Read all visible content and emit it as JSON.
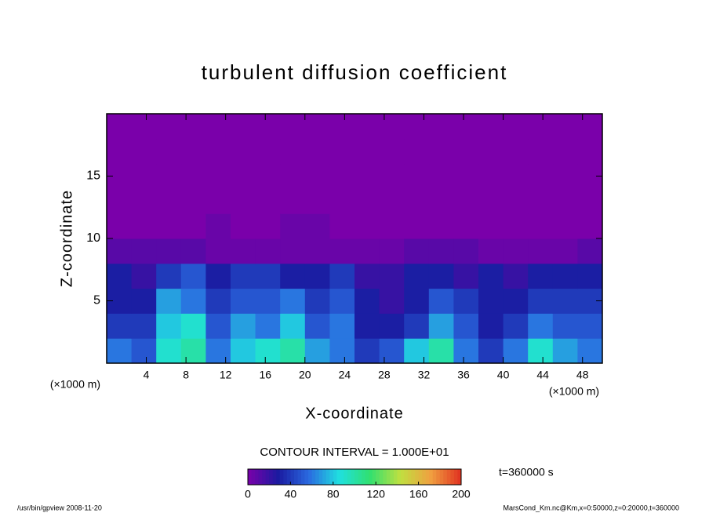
{
  "chart_data": {
    "type": "contour",
    "title": "turbulent diffusion coefficient",
    "xlabel": "X-coordinate",
    "ylabel": "Z-coordinate",
    "x_unit_left": "(×1000 m)",
    "x_unit_right": "(×1000 m)",
    "contour_interval": "CONTOUR INTERVAL = 1.000E+01",
    "time_label": "t=360000 s",
    "footer_left": "/usr/bin/gpview  2008-11-20",
    "footer_right": "MarsCond_Km.nc@Km,x=0:50000,z=0:20000,t=360000",
    "xlim": [
      0,
      50
    ],
    "xticks": [
      4,
      8,
      12,
      16,
      20,
      24,
      28,
      32,
      36,
      40,
      44,
      48
    ],
    "ylim": [
      0,
      20
    ],
    "yticks": [
      5,
      10,
      15
    ],
    "x": [
      1.25,
      3.75,
      6.25,
      8.75,
      11.25,
      13.75,
      16.25,
      18.75,
      21.25,
      23.75,
      26.25,
      28.75,
      31.25,
      33.75,
      36.25,
      38.75,
      41.25,
      43.75,
      46.25,
      48.75
    ],
    "z": [
      1,
      3,
      5,
      7,
      9,
      11,
      13,
      15,
      17,
      19
    ],
    "values": [
      [
        60,
        50,
        90,
        100,
        60,
        80,
        90,
        100,
        70,
        60,
        40,
        50,
        80,
        100,
        60,
        40,
        60,
        90,
        70,
        60
      ],
      [
        40,
        40,
        80,
        90,
        50,
        70,
        60,
        80,
        50,
        60,
        30,
        30,
        40,
        70,
        50,
        30,
        40,
        60,
        50,
        50
      ],
      [
        30,
        30,
        70,
        60,
        40,
        50,
        50,
        60,
        40,
        50,
        30,
        20,
        30,
        50,
        40,
        30,
        30,
        40,
        40,
        40
      ],
      [
        30,
        20,
        40,
        50,
        30,
        40,
        40,
        30,
        30,
        40,
        20,
        20,
        30,
        30,
        20,
        30,
        20,
        30,
        30,
        30
      ],
      [
        10,
        10,
        10,
        10,
        5,
        5,
        5,
        5,
        5,
        5,
        5,
        5,
        10,
        10,
        10,
        5,
        5,
        5,
        5,
        10
      ],
      [
        0,
        0,
        0,
        0,
        5,
        0,
        0,
        5,
        5,
        0,
        0,
        0,
        0,
        0,
        0,
        0,
        0,
        0,
        0,
        0
      ],
      [
        0,
        0,
        0,
        0,
        0,
        0,
        0,
        0,
        0,
        0,
        0,
        0,
        0,
        0,
        0,
        0,
        0,
        0,
        0,
        0
      ],
      [
        0,
        0,
        0,
        0,
        0,
        0,
        0,
        0,
        0,
        0,
        0,
        0,
        0,
        0,
        0,
        0,
        0,
        0,
        0,
        0
      ],
      [
        0,
        0,
        0,
        0,
        0,
        0,
        0,
        0,
        0,
        0,
        0,
        0,
        0,
        0,
        0,
        0,
        0,
        0,
        0,
        0
      ],
      [
        0,
        0,
        0,
        0,
        0,
        0,
        0,
        0,
        0,
        0,
        0,
        0,
        0,
        0,
        0,
        0,
        0,
        0,
        0,
        0
      ]
    ],
    "colormap": [
      "#7a00aa",
      "#1a1aa0",
      "#2a6ae0",
      "#20e0e0",
      "#30e070",
      "#c0e040",
      "#f0a040",
      "#e03020"
    ],
    "clim": [
      0,
      200
    ],
    "colorbar_ticks": [
      0,
      40,
      80,
      120,
      160,
      200
    ]
  }
}
